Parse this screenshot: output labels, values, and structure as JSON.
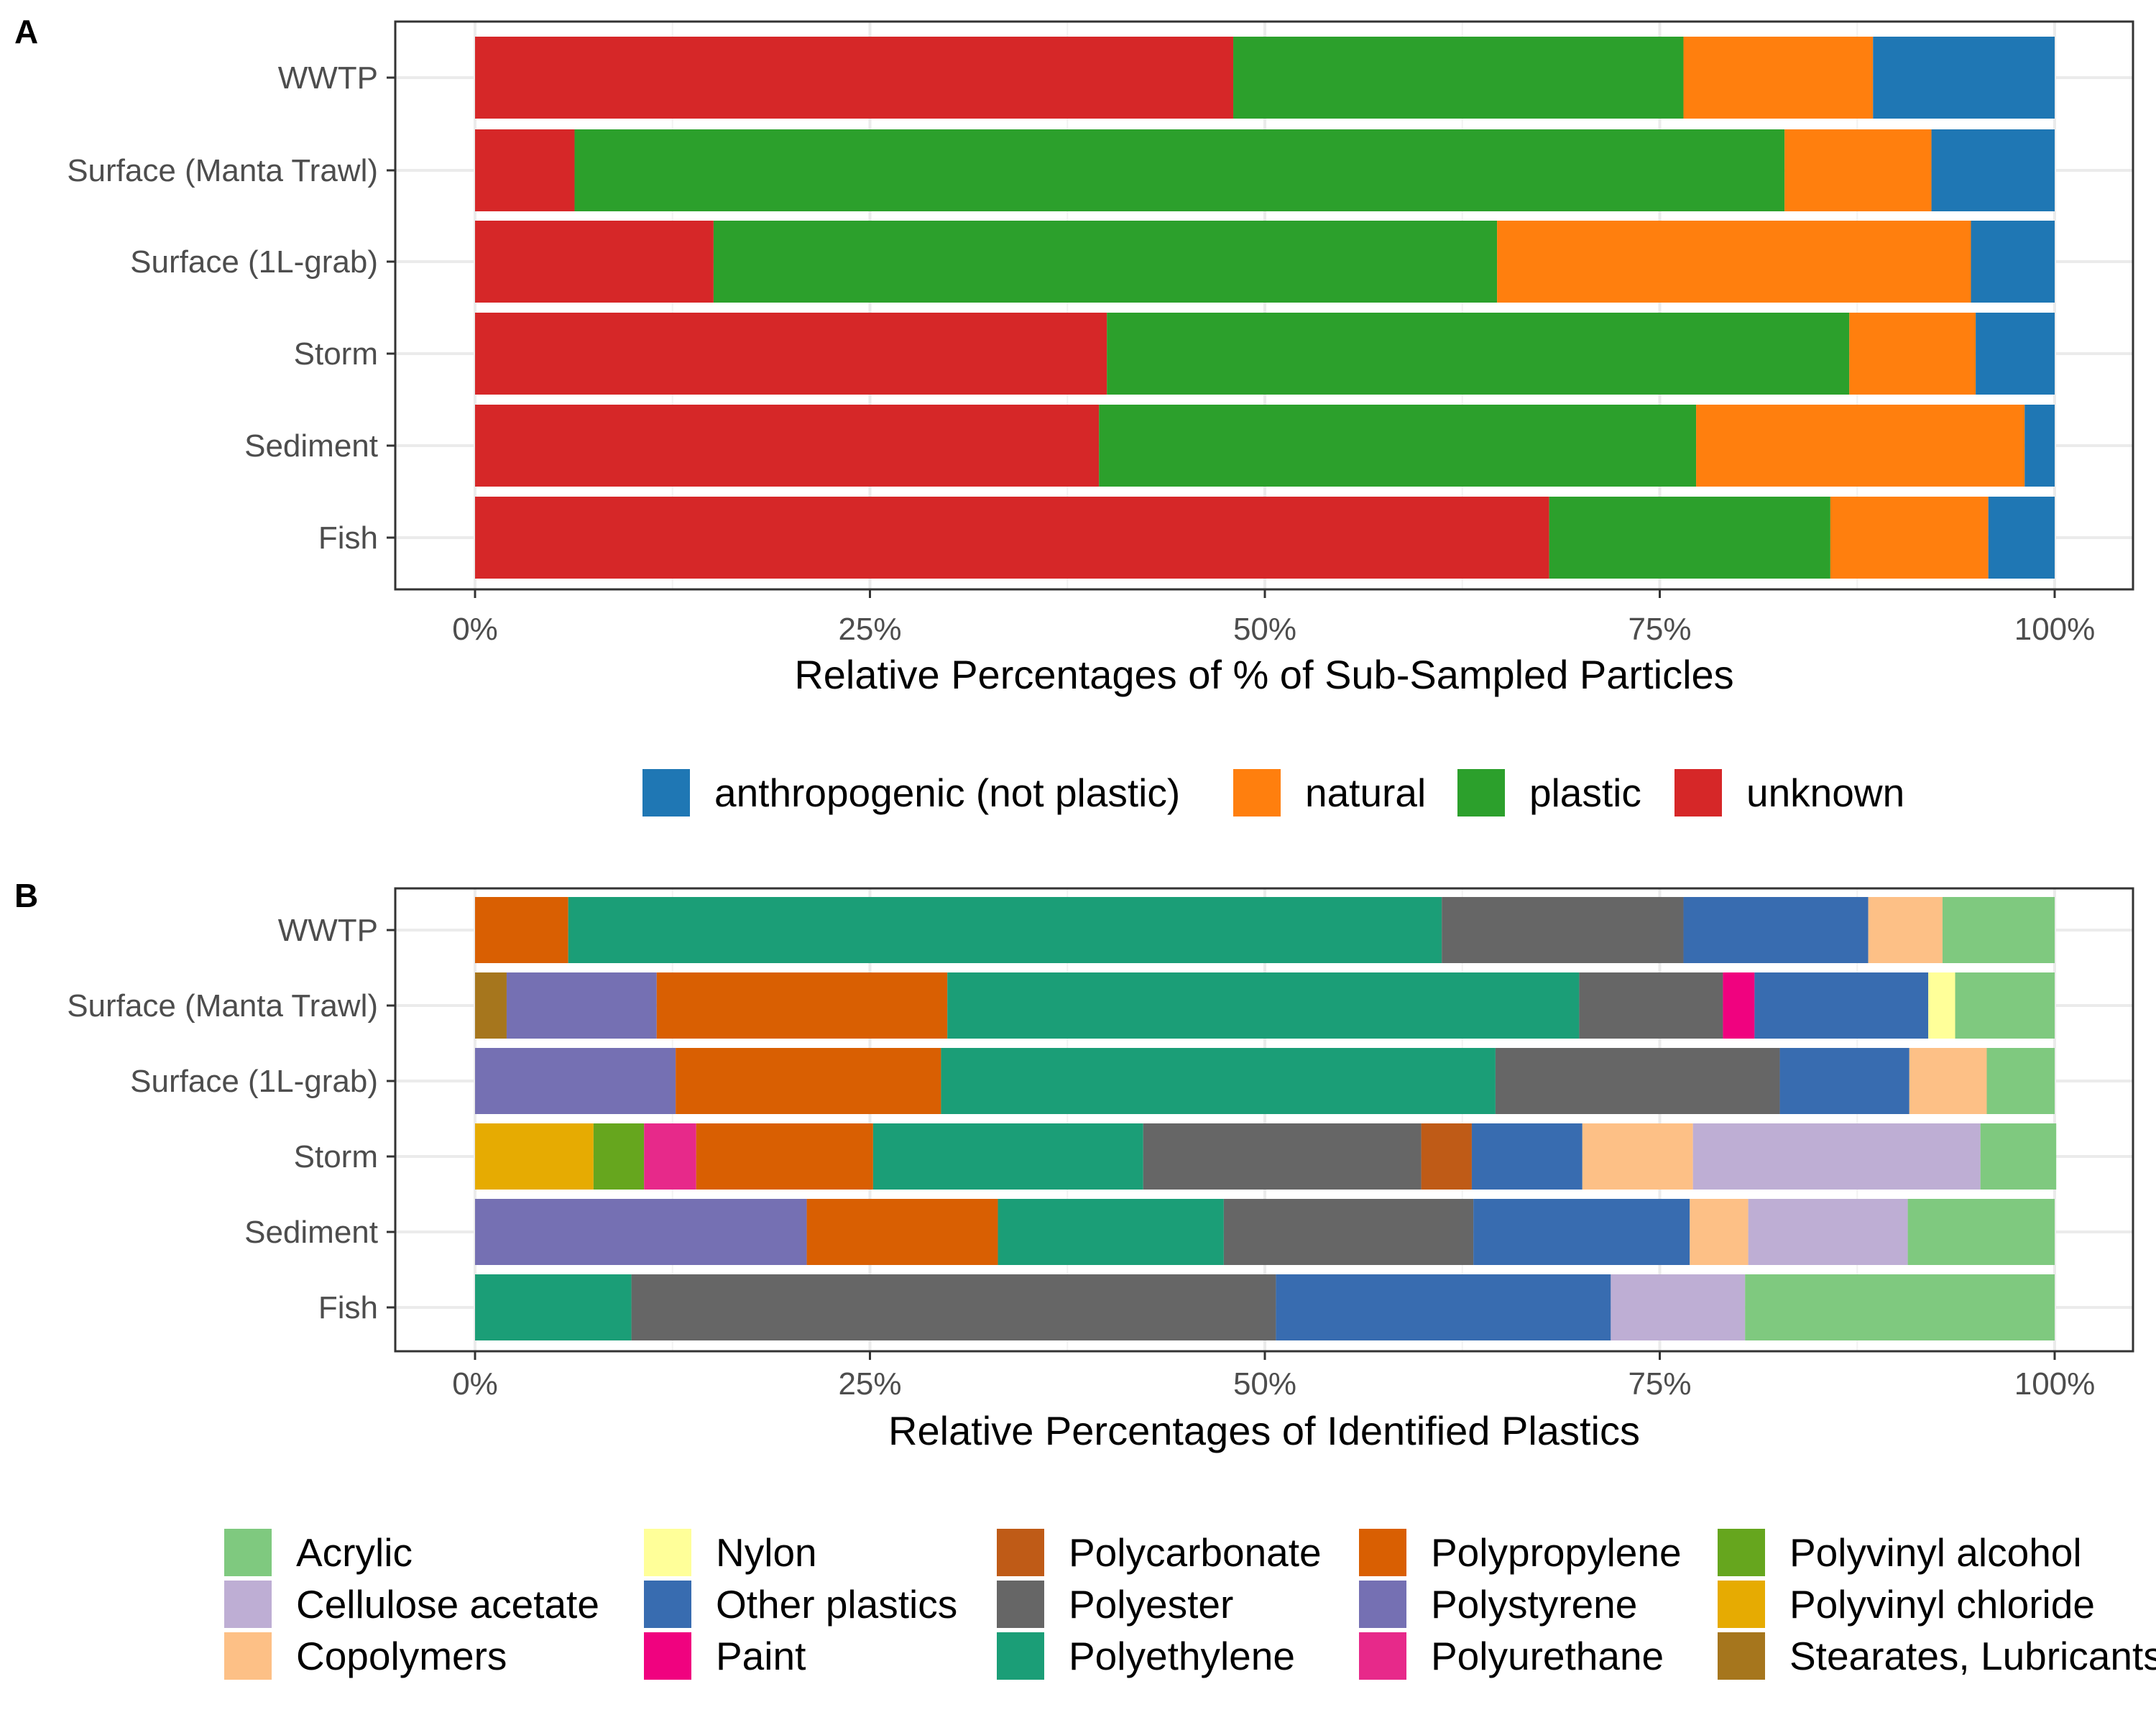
{
  "chart_data": [
    {
      "type": "bar",
      "orientation": "horizontal",
      "stacked": "percent",
      "panel_tag": "A",
      "categories": [
        "WWTP",
        "Surface (Manta Trawl)",
        "Surface (1L-grab)",
        "Storm",
        "Sediment",
        "Fish"
      ],
      "series": [
        {
          "name": "unknown",
          "color": "#d62728",
          "values": [
            48.0,
            6.3,
            15.1,
            40.0,
            39.5,
            68.0
          ]
        },
        {
          "name": "plastic",
          "color": "#2ca02c",
          "values": [
            28.5,
            76.6,
            49.6,
            47.0,
            37.8,
            17.8
          ]
        },
        {
          "name": "natural",
          "color": "#ff7f0e",
          "values": [
            12.0,
            9.3,
            30.0,
            8.0,
            20.8,
            10.0
          ]
        },
        {
          "name": "anthropogenic (not plastic)",
          "color": "#1f77b4",
          "values": [
            11.5,
            7.8,
            5.3,
            5.0,
            1.9,
            4.2
          ]
        }
      ],
      "legend_order": [
        "anthropogenic (not plastic)",
        "natural",
        "plastic",
        "unknown"
      ],
      "xlim": [
        0,
        100
      ],
      "ticks": [
        "0%",
        "25%",
        "50%",
        "75%",
        "100%"
      ],
      "xlabel": "Relative Percentages of % of Sub-Sampled Particles",
      "ylabel": "",
      "grid": true,
      "legend_position": "bottom"
    },
    {
      "type": "bar",
      "orientation": "horizontal",
      "stacked": "percent",
      "panel_tag": "B",
      "categories": [
        "WWTP",
        "Surface (Manta Trawl)",
        "Surface (1L-grab)",
        "Storm",
        "Sediment",
        "Fish"
      ],
      "series": [
        {
          "name": "Stearates, Lubricants",
          "color": "#a6761d",
          "values": [
            0,
            2.0,
            0,
            0,
            0,
            0
          ]
        },
        {
          "name": "Polyvinyl chloride",
          "color": "#e6ab02",
          "values": [
            0,
            0,
            0,
            7.5,
            0,
            0
          ]
        },
        {
          "name": "Polyvinyl alcohol",
          "color": "#66a61e",
          "values": [
            0,
            0,
            0,
            3.2,
            0,
            0
          ]
        },
        {
          "name": "Polyurethane",
          "color": "#e7298a",
          "values": [
            0,
            0,
            0,
            3.3,
            0,
            0
          ]
        },
        {
          "name": "Polystyrene",
          "color": "#7570b3",
          "values": [
            0,
            9.5,
            12.7,
            0,
            21.0,
            0
          ]
        },
        {
          "name": "Polypropylene",
          "color": "#d95f02",
          "values": [
            5.9,
            18.4,
            16.8,
            11.2,
            12.1,
            0
          ]
        },
        {
          "name": "Polyethylene",
          "color": "#1b9e77",
          "values": [
            55.3,
            40.0,
            35.1,
            17.1,
            14.3,
            9.9
          ]
        },
        {
          "name": "Polyester",
          "color": "#666666",
          "values": [
            15.3,
            9.1,
            18.0,
            17.6,
            15.8,
            40.8
          ]
        },
        {
          "name": "Polycarbonate",
          "color": "#bf5b17",
          "values": [
            0,
            0,
            0,
            3.2,
            0,
            0
          ]
        },
        {
          "name": "Paint",
          "color": "#f0027f",
          "values": [
            0,
            2.0,
            0,
            0,
            0,
            0
          ]
        },
        {
          "name": "Other plastics",
          "color": "#386cb0",
          "values": [
            11.7,
            11.0,
            8.2,
            7.0,
            13.7,
            21.2
          ]
        },
        {
          "name": "Nylon",
          "color": "#ffff99",
          "values": [
            0,
            1.7,
            0,
            0,
            0,
            0
          ]
        },
        {
          "name": "Copolymers",
          "color": "#fdc086",
          "values": [
            4.7,
            0,
            4.9,
            7.0,
            3.7,
            0
          ]
        },
        {
          "name": "Cellulose acetate",
          "color": "#beaed4",
          "values": [
            0,
            0,
            0,
            18.2,
            10.1,
            8.5
          ]
        },
        {
          "name": "Acrylic",
          "color": "#7fc97f",
          "values": [
            7.1,
            6.3,
            4.3,
            4.8,
            9.3,
            19.6
          ]
        }
      ],
      "legend_columns": [
        [
          "Acrylic",
          "Cellulose acetate",
          "Copolymers"
        ],
        [
          "Nylon",
          "Other plastics",
          "Paint"
        ],
        [
          "Polycarbonate",
          "Polyester",
          "Polyethylene"
        ],
        [
          "Polypropylene",
          "Polystyrene",
          "Polyurethane"
        ],
        [
          "Polyvinyl alcohol",
          "Polyvinyl chloride",
          "Stearates, Lubricants"
        ]
      ],
      "xlim": [
        0,
        100
      ],
      "ticks": [
        "0%",
        "25%",
        "50%",
        "75%",
        "100%"
      ],
      "xlabel": "Relative Percentages of Identified Plastics",
      "ylabel": "",
      "grid": true,
      "legend_position": "bottom"
    }
  ]
}
